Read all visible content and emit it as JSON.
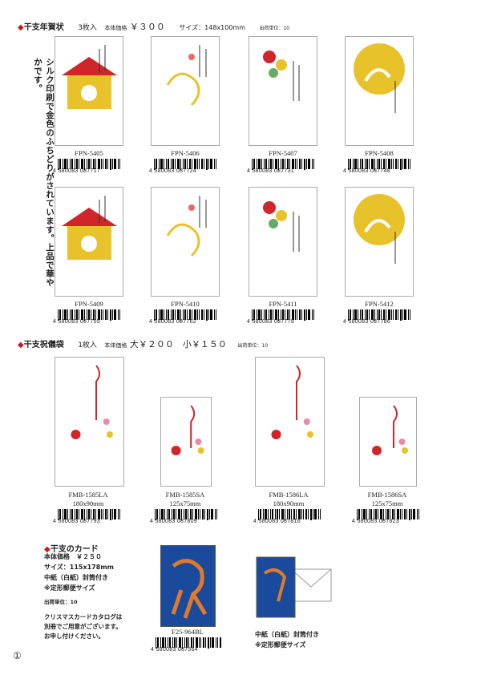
{
  "section1": {
    "title": "干支年賀状",
    "qty": "3枚入",
    "price_label": "本体価格",
    "price": "￥３００",
    "size": "サイズ：148x100mm",
    "unit": "出荷単位：10",
    "side_text": "シルク印刷で金色のふちどりがされています。上品で華やかです。",
    "products": [
      {
        "code": "FPN-5405",
        "barcode": "4 580083 087717"
      },
      {
        "code": "FPN-5406",
        "barcode": "4 580083 087724"
      },
      {
        "code": "FPN-5407",
        "barcode": "4 580083 087731"
      },
      {
        "code": "FPN-5408",
        "barcode": "4 580083 087748"
      },
      {
        "code": "FPN-5409",
        "barcode": "4 580083 087755"
      },
      {
        "code": "FPN-5410",
        "barcode": "4 580083 087762"
      },
      {
        "code": "FPN-5411",
        "barcode": "4 580083 087779"
      },
      {
        "code": "FPN-5412",
        "barcode": "4 580083 087786"
      }
    ]
  },
  "section2": {
    "title": "干支祝儀袋",
    "qty": "1枚入",
    "price_label": "本体価格",
    "price": "大￥２００　小￥１５０",
    "unit": "出荷単位：10",
    "products": [
      {
        "code": "FMB-1585LA",
        "size": "180x90mm",
        "barcode": "4 580083 087793"
      },
      {
        "code": "FMB-1585SA",
        "size": "125x75mm",
        "barcode": "4 580083 087809"
      },
      {
        "code": "FMB-1586LA",
        "size": "180x90mm",
        "barcode": "4 580083 087816"
      },
      {
        "code": "FMB-1586SA",
        "size": "125x75mm",
        "barcode": "4 580083 087823"
      }
    ]
  },
  "section3": {
    "title": "干支のカード",
    "price": "本体価格　￥２５０",
    "size": "サイズ：115x178mm",
    "inner": "中紙（白紙）封筒付き",
    "post": "※定形郵便サイズ",
    "unit": "出荷単位：10",
    "note": [
      "クリスマスカードカタログは",
      "別冊でご用意がございます。",
      "お申し付けください。"
    ],
    "product": {
      "code": "F25-964BL",
      "barcode": "4 580083 087564"
    },
    "caption": [
      "中紙（白紙）封筒付き",
      "※定形郵便サイズ"
    ]
  },
  "page_number": "①"
}
